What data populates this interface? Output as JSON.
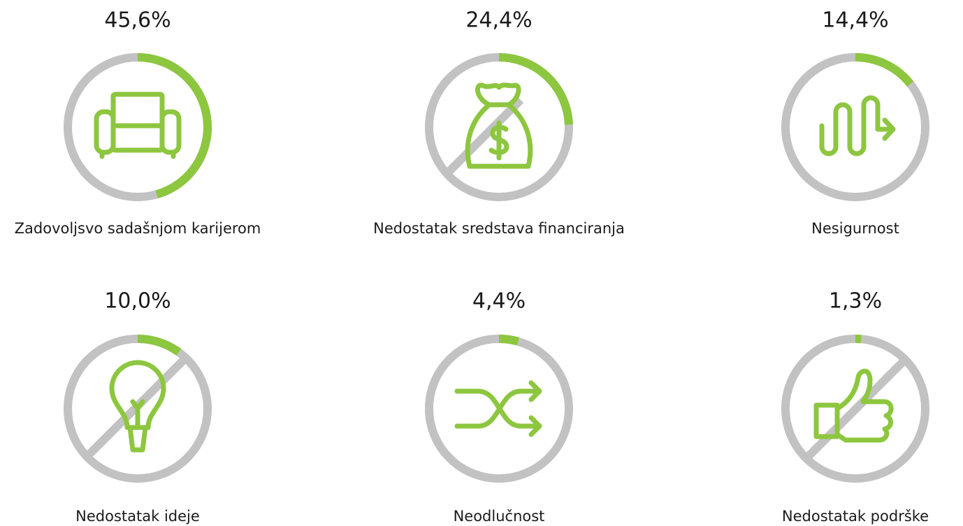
{
  "chart_data": {
    "type": "ring",
    "categories": [
      "Zadovoljsvo sadašnjom karijerom",
      "Nedostatak sredstava financiranja",
      "Nesigurnost",
      "Nedostatak ideje",
      "Neodlučnost",
      "Nedostatak podrške"
    ],
    "values": [
      45.6,
      24.4,
      14.4,
      10.0,
      4.4,
      1.3
    ],
    "value_labels": [
      "45,6%",
      "24,4%",
      "14,4%",
      "10,0%",
      "4,4%",
      "1,3%"
    ],
    "ylim": [
      0,
      100
    ],
    "color": "#8dc63f",
    "track_color": "#c2c2c2"
  }
}
